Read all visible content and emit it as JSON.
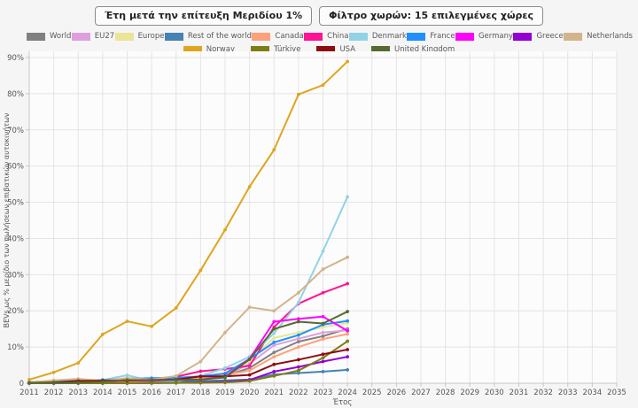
{
  "toolbar": {
    "view_button": "Έτη μετά την επίτευξη Μεριδίου 1%",
    "filter_button": "Φίλτρο χωρών: 15 επιλεγμένες χώρες"
  },
  "chart_data": {
    "type": "line",
    "xlabel": "Έτος",
    "ylabel": "BEVs ως % μερίδιο των πωλήσεων επιβατικών αυτοκινήτων",
    "x": [
      2011,
      2012,
      2013,
      2014,
      2015,
      2016,
      2017,
      2018,
      2019,
      2020,
      2021,
      2022,
      2023,
      2024
    ],
    "x_axis": {
      "range": [
        2011,
        2035
      ],
      "ticks": [
        2011,
        2012,
        2013,
        2014,
        2015,
        2016,
        2017,
        2018,
        2019,
        2020,
        2021,
        2022,
        2023,
        2024,
        2025,
        2026,
        2027,
        2028,
        2029,
        2030,
        2031,
        2032,
        2033,
        2034,
        2035
      ]
    },
    "y_axis": {
      "range": [
        0,
        90
      ],
      "ticks": [
        0,
        10,
        20,
        30,
        40,
        50,
        60,
        70,
        80,
        90
      ],
      "tick_labels": [
        "0",
        "10%",
        "20%",
        "30%",
        "40%",
        "50%",
        "60%",
        "70%",
        "80%",
        "90%"
      ]
    },
    "grid": true,
    "legend_position": "top",
    "legend_rows": [
      11,
      4
    ],
    "series": [
      {
        "name": "World",
        "color": "#808080",
        "values": [
          0.1,
          0.1,
          0.2,
          0.3,
          0.5,
          0.7,
          0.9,
          1.4,
          2.0,
          4.2,
          8.5,
          11.5,
          13.0,
          15.0
        ]
      },
      {
        "name": "EU27",
        "color": "#DDA0DD",
        "values": [
          0.1,
          0.2,
          0.4,
          0.5,
          0.7,
          0.7,
          0.9,
          1.3,
          2.0,
          5.4,
          10.5,
          12.3,
          14.0,
          14.6
        ]
      },
      {
        "name": "Europe",
        "color": "#EBE598",
        "values": [
          0.1,
          0.2,
          0.4,
          0.6,
          0.8,
          0.8,
          1.0,
          1.6,
          2.4,
          6.2,
          12.5,
          14.0,
          15.5,
          16.6
        ]
      },
      {
        "name": "Rest of the world",
        "color": "#4682B4",
        "values": [
          0.0,
          0.1,
          0.1,
          0.2,
          0.3,
          0.3,
          0.4,
          0.6,
          0.8,
          1.0,
          2.4,
          2.8,
          3.2,
          3.7
        ]
      },
      {
        "name": "Canada",
        "color": "#FFA07A",
        "values": [
          0.1,
          0.1,
          0.2,
          0.3,
          0.4,
          0.6,
          0.9,
          1.6,
          2.3,
          3.5,
          7.3,
          10.0,
          12.2,
          13.6
        ]
      },
      {
        "name": "China",
        "color": "#FF1493",
        "values": [
          0.1,
          0.1,
          0.2,
          0.3,
          0.8,
          1.2,
          1.8,
          3.3,
          3.9,
          4.8,
          15.5,
          22.0,
          25.0,
          27.5
        ]
      },
      {
        "name": "Denmark",
        "color": "#92D2E7",
        "values": [
          0.2,
          0.3,
          0.5,
          0.9,
          2.2,
          0.6,
          0.4,
          2.0,
          4.2,
          7.3,
          13.8,
          22.3,
          36.5,
          51.5
        ]
      },
      {
        "name": "France",
        "color": "#1E90FF",
        "values": [
          0.3,
          0.6,
          0.8,
          0.9,
          1.2,
          1.4,
          1.5,
          1.9,
          2.7,
          6.7,
          11.3,
          13.3,
          16.2,
          17.2
        ]
      },
      {
        "name": "Germany",
        "color": "#FF00FF",
        "values": [
          0.1,
          0.2,
          0.2,
          0.4,
          0.7,
          0.7,
          0.9,
          1.0,
          1.8,
          6.7,
          17.0,
          17.8,
          18.4,
          14.5
        ]
      },
      {
        "name": "Greece",
        "color": "#9400D3",
        "values": [
          0.0,
          0.0,
          0.0,
          0.0,
          0.0,
          0.1,
          0.1,
          0.2,
          0.4,
          0.9,
          3.2,
          4.5,
          6.0,
          7.3
        ]
      },
      {
        "name": "Netherlands",
        "color": "#D2B48C",
        "values": [
          0.2,
          0.8,
          1.2,
          0.7,
          1.4,
          1.0,
          2.0,
          6.0,
          14.0,
          21.0,
          20.0,
          25.0,
          31.5,
          34.8
        ]
      },
      {
        "name": "Norway",
        "color": "#DFA51E",
        "values": [
          1.0,
          3.0,
          5.6,
          13.5,
          17.1,
          15.7,
          20.8,
          31.2,
          42.4,
          54.3,
          64.5,
          79.8,
          82.4,
          88.9
        ]
      },
      {
        "name": "Türkiye",
        "color": "#7E7E14",
        "values": [
          0.0,
          0.0,
          0.0,
          0.0,
          0.0,
          0.0,
          0.1,
          0.1,
          0.2,
          0.6,
          2.0,
          3.5,
          7.0,
          11.6
        ]
      },
      {
        "name": "USA",
        "color": "#8F0A12",
        "values": [
          0.1,
          0.2,
          0.6,
          0.7,
          0.7,
          0.9,
          1.0,
          1.9,
          1.9,
          2.3,
          5.2,
          6.5,
          8.0,
          9.3
        ]
      },
      {
        "name": "United Kingdom",
        "color": "#556B2F",
        "values": [
          0.1,
          0.1,
          0.2,
          0.4,
          0.9,
          0.8,
          0.9,
          1.0,
          1.6,
          6.6,
          15.0,
          17.0,
          16.5,
          19.8
        ]
      }
    ],
    "style": {
      "page_bg": "#f5f5f5",
      "plot_bg": "#fcfcfc",
      "grid_color": "#e4e4e4",
      "axis_color": "#c8c8c8",
      "tick_text_color": "#555555"
    }
  }
}
